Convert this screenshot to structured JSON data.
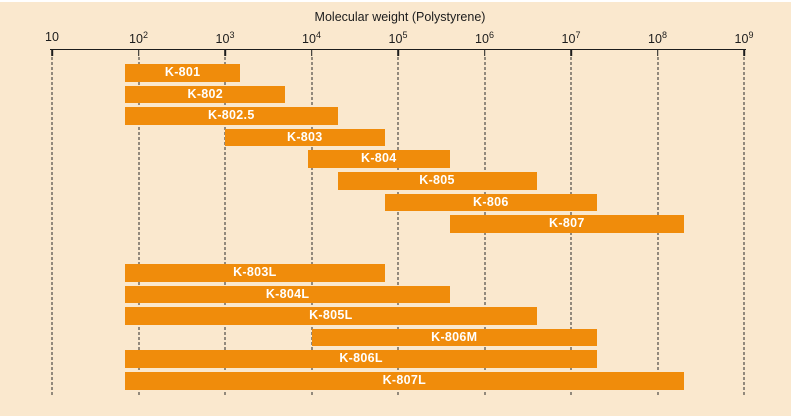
{
  "title": "Molecular weight (Polystyrene)",
  "colors": {
    "background": "#FAE8CE",
    "bar": "#F08C0B",
    "bar_text": "#FFFFFF",
    "axis": "#1C1C1C"
  },
  "axis": {
    "scale": "log10",
    "min": 10,
    "max": 1000000000,
    "ticks": [
      {
        "base": "10",
        "sup": "",
        "log": 1
      },
      {
        "base": "10",
        "sup": "2",
        "log": 2
      },
      {
        "base": "10",
        "sup": "3",
        "log": 3
      },
      {
        "base": "10",
        "sup": "4",
        "log": 4
      },
      {
        "base": "10",
        "sup": "5",
        "log": 5
      },
      {
        "base": "10",
        "sup": "6",
        "log": 6
      },
      {
        "base": "10",
        "sup": "7",
        "log": 7
      },
      {
        "base": "10",
        "sup": "8",
        "log": 8
      },
      {
        "base": "10",
        "sup": "9",
        "log": 9
      }
    ]
  },
  "chart_data": {
    "type": "bar",
    "orientation": "horizontal-range",
    "title": "Molecular weight (Polystyrene)",
    "xlabel": "Molecular weight (Polystyrene)",
    "x_scale": "log10",
    "x_range": [
      10,
      1000000000
    ],
    "grid": "dashed-vertical-per-decade",
    "groups": [
      {
        "name": "standard-columns",
        "bars": [
          {
            "label": "K-801",
            "min": 70,
            "max": 1500
          },
          {
            "label": "K-802",
            "min": 70,
            "max": 5000
          },
          {
            "label": "K-802.5",
            "min": 70,
            "max": 20000
          },
          {
            "label": "K-803",
            "min": 1000,
            "max": 70000
          },
          {
            "label": "K-804",
            "min": 9000,
            "max": 400000
          },
          {
            "label": "K-805",
            "min": 20000,
            "max": 4000000
          },
          {
            "label": "K-806",
            "min": 70000,
            "max": 20000000
          },
          {
            "label": "K-807",
            "min": 400000,
            "max": 200000000
          }
        ]
      },
      {
        "name": "linear-mixed-columns",
        "bars": [
          {
            "label": "K-803L",
            "min": 70,
            "max": 70000
          },
          {
            "label": "K-804L",
            "min": 70,
            "max": 400000
          },
          {
            "label": "K-805L",
            "min": 70,
            "max": 4000000
          },
          {
            "label": "K-806M",
            "min": 10000,
            "max": 20000000
          },
          {
            "label": "K-806L",
            "min": 70,
            "max": 20000000
          },
          {
            "label": "K-807L",
            "min": 70,
            "max": 200000000
          }
        ]
      }
    ]
  }
}
